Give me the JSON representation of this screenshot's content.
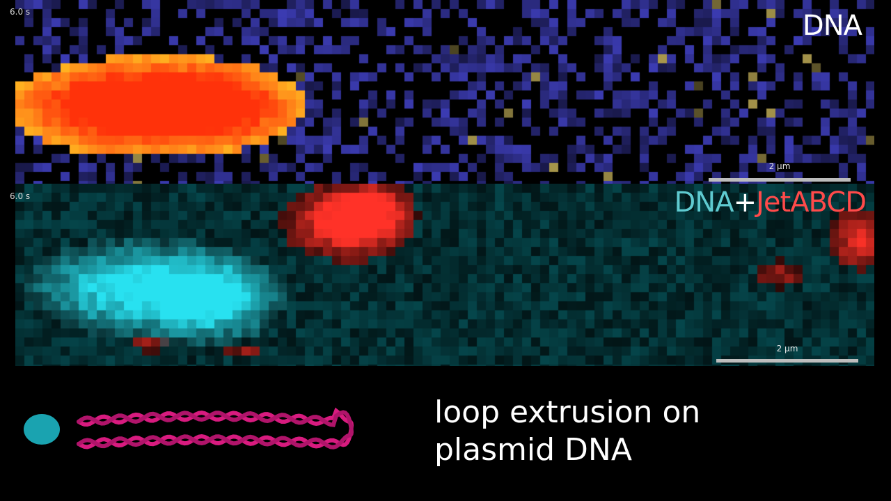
{
  "top_panel": {
    "timestamp": "6.0 s",
    "channel_label": "DNA",
    "scale_bar_label": "2 µm"
  },
  "bottom_panel": {
    "timestamp": "6.0 s",
    "channel_label": {
      "part1": "DNA",
      "part2": "+",
      "part3": "JetABCD"
    },
    "scale_bar_label": "2 µm"
  },
  "caption": {
    "line1": "loop extrusion on",
    "line2": "plasmid DNA"
  },
  "colors": {
    "dna_cyan": "#5fcad0",
    "jetabcd_red": "#ff4a4a",
    "background_purple": "#3b3bbf",
    "dna_magenta": "#d81b7f",
    "protein_teal": "#1aa3b0"
  }
}
